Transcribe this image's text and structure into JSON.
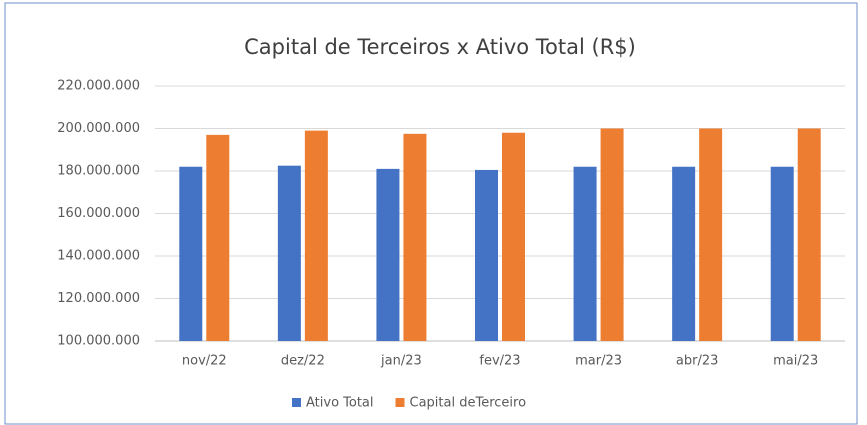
{
  "chart_data": {
    "type": "bar",
    "title": "Capital de Terceiros x Ativo Total (R$)",
    "categories": [
      "nov/22",
      "dez/22",
      "jan/23",
      "fev/23",
      "mar/23",
      "abr/23",
      "mai/23"
    ],
    "series": [
      {
        "name": "Ativo Total",
        "color": "#4472c4",
        "values": [
          182000000,
          182500000,
          181000000,
          180500000,
          182000000,
          182000000,
          182000000
        ]
      },
      {
        "name": "Capital deTerceiro",
        "color": "#ed7d31",
        "values": [
          197000000,
          199000000,
          197500000,
          198000000,
          200000000,
          200000000,
          200000000
        ]
      }
    ],
    "ylim": [
      100000000,
      220000000
    ],
    "yticks": [
      {
        "value": 100000000,
        "label": "100.000.000"
      },
      {
        "value": 120000000,
        "label": "120.000.000"
      },
      {
        "value": 140000000,
        "label": "140.000.000"
      },
      {
        "value": 160000000,
        "label": "160.000.000"
      },
      {
        "value": 180000000,
        "label": "180.000.000"
      },
      {
        "value": 200000000,
        "label": "200.000.000"
      },
      {
        "value": 220000000,
        "label": "220.000.000"
      }
    ],
    "grid": true,
    "legend": "bottom"
  }
}
